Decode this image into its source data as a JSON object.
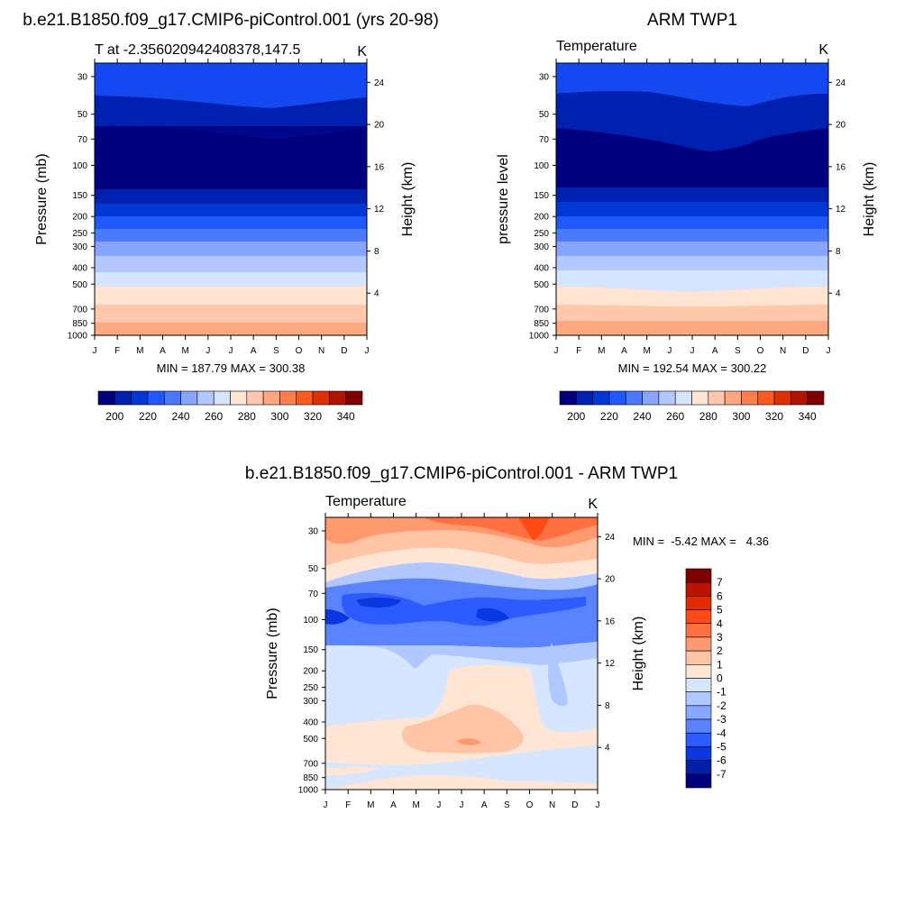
{
  "chart_data": [
    {
      "type": "heatmap",
      "panel": "model",
      "title": "b.e21.B1850.f09_g17.CMIP6-piControl.001 (yrs 20-98)",
      "left_label": "T at -2.356020942408378,147.5",
      "right_label": "K",
      "ylabel": "Pressure (mb)",
      "ylabel_right": "Height (km)",
      "x_ticks": [
        "J",
        "F",
        "M",
        "A",
        "M",
        "J",
        "J",
        "A",
        "S",
        "O",
        "N",
        "D",
        "J"
      ],
      "y_ticks": [
        "30",
        "50",
        "70",
        "100",
        "150",
        "200",
        "250",
        "300",
        "400",
        "500",
        "700",
        "850",
        "1000"
      ],
      "y_ticks_right": [
        "24",
        "20",
        "16",
        "12",
        "8",
        "4"
      ],
      "ylim": [
        1000,
        25
      ],
      "minmax": "MIN = 187.79 MAX = 300.38",
      "colorbar": {
        "levels": [
          "200",
          "220",
          "240",
          "260",
          "280",
          "300",
          "320",
          "340"
        ],
        "orientation": "horizontal"
      },
      "summary": {
        "min": 187.79,
        "max": 300.38
      },
      "field_profile_K": [
        {
          "p": 30,
          "t": 218
        },
        {
          "p": 50,
          "t": 207
        },
        {
          "p": 70,
          "t": 196
        },
        {
          "p": 100,
          "t": 194
        },
        {
          "p": 150,
          "t": 205
        },
        {
          "p": 200,
          "t": 217
        },
        {
          "p": 250,
          "t": 227
        },
        {
          "p": 300,
          "t": 236
        },
        {
          "p": 400,
          "t": 252
        },
        {
          "p": 500,
          "t": 265
        },
        {
          "p": 700,
          "t": 283
        },
        {
          "p": 850,
          "t": 292
        },
        {
          "p": 1000,
          "t": 299
        }
      ]
    },
    {
      "type": "heatmap",
      "panel": "obs",
      "title": "ARM TWP1",
      "left_label": "Temperature",
      "right_label": "K",
      "ylabel": "pressure level",
      "ylabel_right": "Height (km)",
      "x_ticks": [
        "J",
        "F",
        "M",
        "A",
        "M",
        "J",
        "J",
        "A",
        "S",
        "O",
        "N",
        "D",
        "J"
      ],
      "y_ticks": [
        "30",
        "50",
        "70",
        "100",
        "150",
        "200",
        "250",
        "300",
        "400",
        "500",
        "700",
        "850",
        "1000"
      ],
      "y_ticks_right": [
        "24",
        "20",
        "16",
        "12",
        "8",
        "4"
      ],
      "ylim": [
        1000,
        25
      ],
      "minmax": "MIN = 192.54 MAX = 300.22",
      "colorbar": {
        "levels": [
          "200",
          "220",
          "240",
          "260",
          "280",
          "300",
          "320",
          "340"
        ],
        "orientation": "horizontal"
      },
      "summary": {
        "min": 192.54,
        "max": 300.22
      }
    },
    {
      "type": "heatmap",
      "panel": "diff",
      "title": "b.e21.B1850.f09_g17.CMIP6-piControl.001 - ARM TWP1",
      "left_label": "Temperature",
      "right_label": "K",
      "ylabel": "Pressure (mb)",
      "ylabel_right": "Height (km)",
      "x_ticks": [
        "J",
        "F",
        "M",
        "A",
        "M",
        "J",
        "J",
        "A",
        "S",
        "O",
        "N",
        "D",
        "J"
      ],
      "y_ticks": [
        "30",
        "50",
        "70",
        "100",
        "150",
        "200",
        "250",
        "300",
        "400",
        "500",
        "700",
        "850",
        "1000"
      ],
      "y_ticks_right": [
        "24",
        "20",
        "16",
        "12",
        "8",
        "4"
      ],
      "ylim": [
        1000,
        25
      ],
      "minmax": "MIN =  -5.42 MAX =   4.36",
      "colorbar": {
        "levels": [
          "7",
          "6",
          "5",
          "4",
          "3",
          "2",
          "1",
          "0",
          "-1",
          "-2",
          "-3",
          "-4",
          "-5",
          "-6",
          "-7"
        ],
        "orientation": "vertical"
      },
      "summary": {
        "min": -5.42,
        "max": 4.36
      }
    }
  ],
  "colors": {
    "temp_palette": [
      "#00007f",
      "#0020b0",
      "#0038d6",
      "#1e58ff",
      "#4a7bff",
      "#86a5ff",
      "#b2c8ff",
      "#d6e5ff",
      "#ffe5d2",
      "#ffc8ab",
      "#ffa77f",
      "#ff7f4a",
      "#ff5a1e",
      "#e03000",
      "#b01400",
      "#800000"
    ],
    "diff_palette": [
      "#800000",
      "#b81400",
      "#e02c00",
      "#ff4a14",
      "#ff7040",
      "#ff9a6e",
      "#ffc4a4",
      "#ffe6d4",
      "#d6e6ff",
      "#b0c8ff",
      "#88a8ff",
      "#5a84ff",
      "#2c5cff",
      "#0a38e0",
      "#0020a8",
      "#00007a"
    ]
  }
}
